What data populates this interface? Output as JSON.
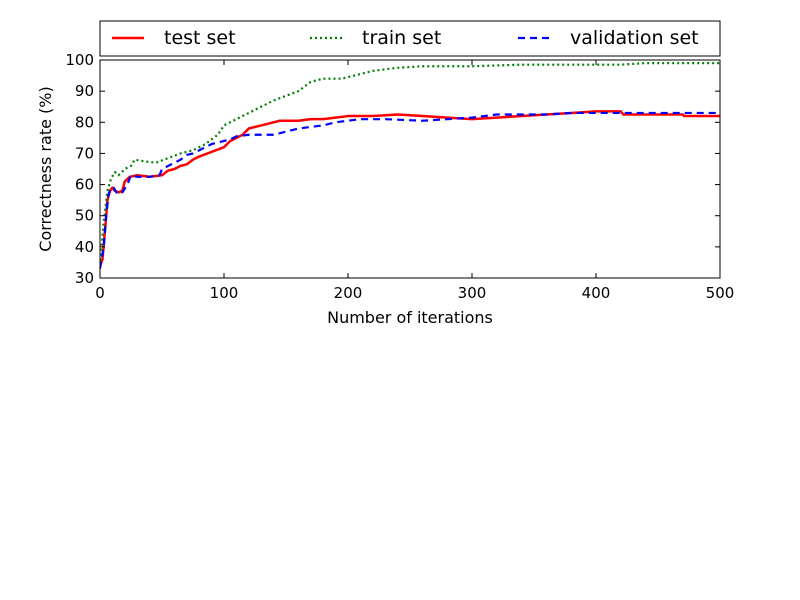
{
  "chart_data": {
    "type": "line",
    "title": "",
    "xlabel": "Number of iterations",
    "ylabel": "Correctness rate (%)",
    "xlim": [
      0,
      500
    ],
    "ylim": [
      30,
      100
    ],
    "x_ticks": [
      0,
      100,
      200,
      300,
      400,
      500
    ],
    "y_ticks": [
      30,
      40,
      50,
      60,
      70,
      80,
      90,
      100
    ],
    "grid": false,
    "legend_position": "top, outside plot, horizontal",
    "series": [
      {
        "name": "test set",
        "color": "#ff0000",
        "style": "solid",
        "points": [
          [
            0,
            34
          ],
          [
            2,
            36
          ],
          [
            4,
            45
          ],
          [
            6,
            55
          ],
          [
            8,
            58
          ],
          [
            10,
            59
          ],
          [
            12,
            58
          ],
          [
            15,
            57.5
          ],
          [
            18,
            58
          ],
          [
            20,
            61
          ],
          [
            24,
            62.5
          ],
          [
            30,
            63
          ],
          [
            40,
            62.5
          ],
          [
            50,
            63
          ],
          [
            55,
            64.5
          ],
          [
            60,
            65
          ],
          [
            65,
            66
          ],
          [
            70,
            66.5
          ],
          [
            75,
            68
          ],
          [
            80,
            69
          ],
          [
            90,
            70.5
          ],
          [
            100,
            72
          ],
          [
            105,
            74
          ],
          [
            110,
            75
          ],
          [
            115,
            76
          ],
          [
            120,
            78
          ],
          [
            130,
            79
          ],
          [
            140,
            80
          ],
          [
            145,
            80.5
          ],
          [
            150,
            80.5
          ],
          [
            160,
            80.5
          ],
          [
            170,
            81
          ],
          [
            180,
            81
          ],
          [
            190,
            81.5
          ],
          [
            200,
            82
          ],
          [
            220,
            82
          ],
          [
            240,
            82.5
          ],
          [
            260,
            82
          ],
          [
            280,
            81.5
          ],
          [
            300,
            81
          ],
          [
            320,
            81.5
          ],
          [
            340,
            82
          ],
          [
            360,
            82.5
          ],
          [
            380,
            83
          ],
          [
            400,
            83.5
          ],
          [
            420,
            83.5
          ],
          [
            422,
            82.5
          ],
          [
            450,
            82.5
          ],
          [
            470,
            82.5
          ],
          [
            471,
            82
          ],
          [
            500,
            82
          ]
        ]
      },
      {
        "name": "train set",
        "color": "#008000",
        "style": "dotted",
        "points": [
          [
            0,
            34
          ],
          [
            3,
            48
          ],
          [
            6,
            58
          ],
          [
            9,
            62
          ],
          [
            12,
            64
          ],
          [
            15,
            63
          ],
          [
            20,
            65
          ],
          [
            25,
            66
          ],
          [
            28,
            68
          ],
          [
            35,
            67.5
          ],
          [
            45,
            67
          ],
          [
            55,
            68.5
          ],
          [
            65,
            70
          ],
          [
            75,
            71
          ],
          [
            85,
            73
          ],
          [
            95,
            76
          ],
          [
            100,
            79
          ],
          [
            110,
            81
          ],
          [
            120,
            83
          ],
          [
            130,
            85
          ],
          [
            140,
            87
          ],
          [
            150,
            88.5
          ],
          [
            160,
            90
          ],
          [
            170,
            93
          ],
          [
            180,
            94
          ],
          [
            195,
            94
          ],
          [
            200,
            94.5
          ],
          [
            210,
            95.5
          ],
          [
            220,
            96.5
          ],
          [
            230,
            97
          ],
          [
            240,
            97.5
          ],
          [
            260,
            98
          ],
          [
            300,
            98
          ],
          [
            340,
            98.5
          ],
          [
            400,
            98.5
          ],
          [
            420,
            98.5
          ],
          [
            440,
            99
          ],
          [
            500,
            99
          ]
        ]
      },
      {
        "name": "validation set",
        "color": "#0000ff",
        "style": "dashed",
        "points": [
          [
            0,
            33
          ],
          [
            3,
            40
          ],
          [
            5,
            50
          ],
          [
            7,
            57
          ],
          [
            9,
            59
          ],
          [
            11,
            59
          ],
          [
            14,
            57
          ],
          [
            18,
            57.5
          ],
          [
            22,
            60
          ],
          [
            25,
            63
          ],
          [
            30,
            62.5
          ],
          [
            40,
            62.5
          ],
          [
            48,
            63
          ],
          [
            50,
            65
          ],
          [
            55,
            66
          ],
          [
            60,
            67
          ],
          [
            65,
            68
          ],
          [
            70,
            69.5
          ],
          [
            75,
            70
          ],
          [
            80,
            71
          ],
          [
            90,
            73
          ],
          [
            100,
            74
          ],
          [
            105,
            74.5
          ],
          [
            110,
            75.5
          ],
          [
            120,
            76
          ],
          [
            130,
            76
          ],
          [
            140,
            76
          ],
          [
            150,
            77
          ],
          [
            160,
            78
          ],
          [
            170,
            78.5
          ],
          [
            180,
            79
          ],
          [
            190,
            80
          ],
          [
            200,
            80.5
          ],
          [
            210,
            81
          ],
          [
            230,
            81
          ],
          [
            260,
            80.5
          ],
          [
            280,
            81
          ],
          [
            300,
            81.5
          ],
          [
            310,
            82
          ],
          [
            320,
            82.5
          ],
          [
            340,
            82.5
          ],
          [
            360,
            82.5
          ],
          [
            380,
            83
          ],
          [
            400,
            83
          ],
          [
            420,
            83
          ],
          [
            440,
            83
          ],
          [
            470,
            83
          ],
          [
            500,
            83
          ]
        ]
      }
    ]
  }
}
